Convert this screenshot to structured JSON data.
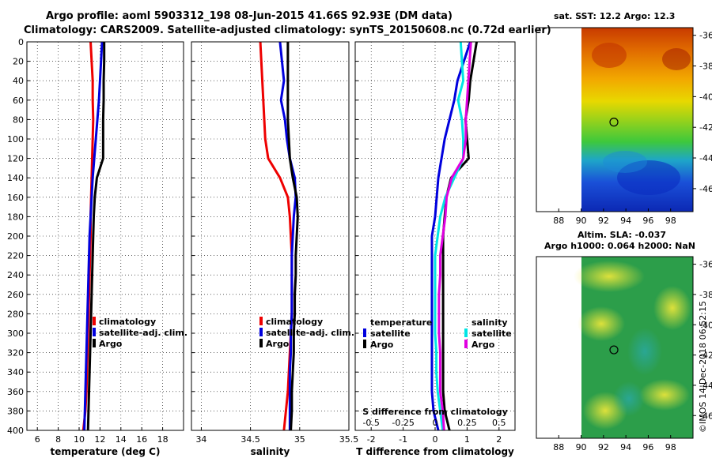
{
  "header": {
    "title_line1": "Argo profile: aoml 5903312_198 08-Jun-2015 41.66S 92.93E (DM data)",
    "title_line2": "Climatology: CARS2009. Satellite-adjusted climatology: synTS_20150608.nc (0.72d earlier)"
  },
  "colors": {
    "climatology": "#ee0000",
    "satellite": "#0000dd",
    "argo": "#000000",
    "sal_sat": "#00e5e5",
    "sal_argo": "#e000e0"
  },
  "chart_data": [
    {
      "type": "line",
      "id": "temperature",
      "xlabel": "temperature (deg C)",
      "ylabel": "",
      "xlim": [
        5,
        20
      ],
      "ylim": [
        400,
        0
      ],
      "x_ticks": [
        "6",
        "8",
        "10",
        "12",
        "14",
        "16",
        "18"
      ],
      "y_ticks": [
        "0",
        "20",
        "40",
        "60",
        "80",
        "100",
        "120",
        "140",
        "160",
        "180",
        "200",
        "220",
        "240",
        "260",
        "280",
        "300",
        "320",
        "340",
        "360",
        "380",
        "400"
      ],
      "depth": [
        0,
        20,
        40,
        60,
        80,
        100,
        120,
        140,
        160,
        180,
        200,
        220,
        240,
        260,
        280,
        300,
        320,
        340,
        360,
        380,
        400
      ],
      "series": [
        {
          "name": "climatology",
          "values": [
            11.1,
            11.2,
            11.3,
            11.3,
            11.35,
            11.3,
            11.25,
            11.2,
            11.15,
            11.1,
            11.1,
            11.05,
            11.0,
            10.95,
            10.9,
            10.85,
            10.8,
            10.75,
            10.7,
            10.6,
            10.4
          ]
        },
        {
          "name": "satellite-adj. clim.",
          "values": [
            12.2,
            12.1,
            12.0,
            11.9,
            11.75,
            11.6,
            11.45,
            11.3,
            11.2,
            11.1,
            11.0,
            10.95,
            10.9,
            10.85,
            10.8,
            10.75,
            10.7,
            10.65,
            10.6,
            10.55,
            10.5
          ]
        },
        {
          "name": "Argo",
          "values": [
            12.4,
            12.4,
            12.35,
            12.35,
            12.3,
            12.3,
            12.3,
            11.7,
            11.5,
            11.4,
            11.35,
            11.3,
            11.25,
            11.2,
            11.15,
            11.1,
            11.05,
            11.0,
            10.95,
            10.9,
            10.85
          ]
        }
      ],
      "legend": [
        "climatology",
        "satellite-adj. clim.",
        "Argo"
      ]
    },
    {
      "type": "line",
      "id": "salinity",
      "xlabel": "salinity",
      "xlim": [
        33.9,
        35.5
      ],
      "ylim": [
        400,
        0
      ],
      "x_ticks": [
        "34",
        "34.5",
        "35",
        "35.5"
      ],
      "depth": [
        0,
        20,
        40,
        60,
        80,
        100,
        120,
        140,
        160,
        180,
        200,
        220,
        240,
        260,
        280,
        300,
        320,
        340,
        360,
        380,
        400
      ],
      "series": [
        {
          "name": "climatology",
          "values": [
            34.6,
            34.61,
            34.62,
            34.63,
            34.64,
            34.65,
            34.68,
            34.8,
            34.88,
            34.9,
            34.91,
            34.92,
            34.92,
            34.92,
            34.92,
            34.91,
            34.9,
            34.89,
            34.88,
            34.86,
            34.84
          ]
        },
        {
          "name": "satellite-adj. clim.",
          "values": [
            34.8,
            34.82,
            34.84,
            34.81,
            34.85,
            34.87,
            34.9,
            34.95,
            34.96,
            34.94,
            34.93,
            34.92,
            34.92,
            34.92,
            34.92,
            34.91,
            34.91,
            34.9,
            34.9,
            34.9,
            34.9
          ]
        },
        {
          "name": "Argo",
          "values": [
            34.88,
            34.88,
            34.88,
            34.88,
            34.88,
            34.89,
            34.9,
            34.93,
            34.97,
            34.98,
            34.97,
            34.96,
            34.96,
            34.95,
            34.95,
            34.94,
            34.94,
            34.93,
            34.92,
            34.92,
            34.91
          ]
        }
      ],
      "legend": [
        "climatology",
        "satellite-adj. clim.",
        "Argo"
      ]
    },
    {
      "type": "line",
      "id": "differences",
      "xlabel": "T difference from climatology",
      "xlabel2": "S difference from climatology",
      "xlim": [
        -2.5,
        2.5
      ],
      "s_xlim": [
        -0.625,
        0.625
      ],
      "ylim": [
        400,
        0
      ],
      "x_ticks": [
        "-2",
        "-1",
        "0",
        "1",
        "2"
      ],
      "s_ticks": [
        "-0.5",
        "-0.25",
        "0",
        "0.25",
        "0.5"
      ],
      "depth": [
        0,
        20,
        40,
        60,
        80,
        100,
        120,
        140,
        160,
        180,
        200,
        220,
        240,
        260,
        280,
        300,
        320,
        340,
        360,
        380,
        400
      ],
      "series": [
        {
          "name": "temperature satellite",
          "values": [
            1.1,
            0.9,
            0.7,
            0.6,
            0.45,
            0.3,
            0.2,
            0.1,
            0.05,
            0.0,
            -0.1,
            -0.1,
            -0.1,
            -0.1,
            -0.1,
            -0.1,
            -0.1,
            -0.1,
            -0.1,
            -0.05,
            0.1
          ]
        },
        {
          "name": "temperature Argo",
          "values": [
            1.3,
            1.2,
            1.1,
            1.05,
            0.95,
            1.0,
            1.05,
            0.5,
            0.35,
            0.3,
            0.25,
            0.25,
            0.25,
            0.25,
            0.25,
            0.25,
            0.25,
            0.25,
            0.25,
            0.3,
            0.45
          ]
        },
        {
          "name": "salinity satellite",
          "values": [
            0.2,
            0.21,
            0.22,
            0.18,
            0.21,
            0.22,
            0.22,
            0.15,
            0.08,
            0.04,
            0.02,
            0.0,
            0.0,
            0.0,
            0.0,
            0.0,
            0.01,
            0.01,
            0.02,
            0.04,
            0.06
          ]
        },
        {
          "name": "salinity Argo",
          "values": [
            0.28,
            0.27,
            0.26,
            0.25,
            0.24,
            0.24,
            0.22,
            0.13,
            0.09,
            0.08,
            0.06,
            0.04,
            0.04,
            0.03,
            0.03,
            0.03,
            0.04,
            0.04,
            0.04,
            0.06,
            0.07
          ]
        }
      ],
      "legend": {
        "temperature_heading": "temperature",
        "salinity_heading": "salinity",
        "t_satellite": "satellite",
        "t_argo": "Argo",
        "s_satellite": "satellite",
        "s_argo": "Argo"
      }
    }
  ],
  "maps": {
    "sst": {
      "title": "sat. SST: 12.2 Argo: 12.3",
      "lat_ticks": [
        "-36",
        "-38",
        "-40",
        "-42",
        "-44",
        "-46"
      ],
      "lon_ticks": [
        "88",
        "90",
        "92",
        "94",
        "96",
        "98"
      ],
      "float_lon": 92.93,
      "float_lat": -41.66
    },
    "sla": {
      "title1": "Altim. SLA: -0.037",
      "title2": "Argo h1000: 0.064 h2000: NaN",
      "lat_ticks": [
        "-36",
        "-38",
        "-40",
        "-42",
        "-44",
        "-46"
      ],
      "lon_ticks": [
        "88",
        "90",
        "92",
        "94",
        "96",
        "98"
      ],
      "float_lon": 92.93,
      "float_lat": -41.66
    }
  },
  "watermark": "©IMOS 14-Dec-2018 06:52:15"
}
